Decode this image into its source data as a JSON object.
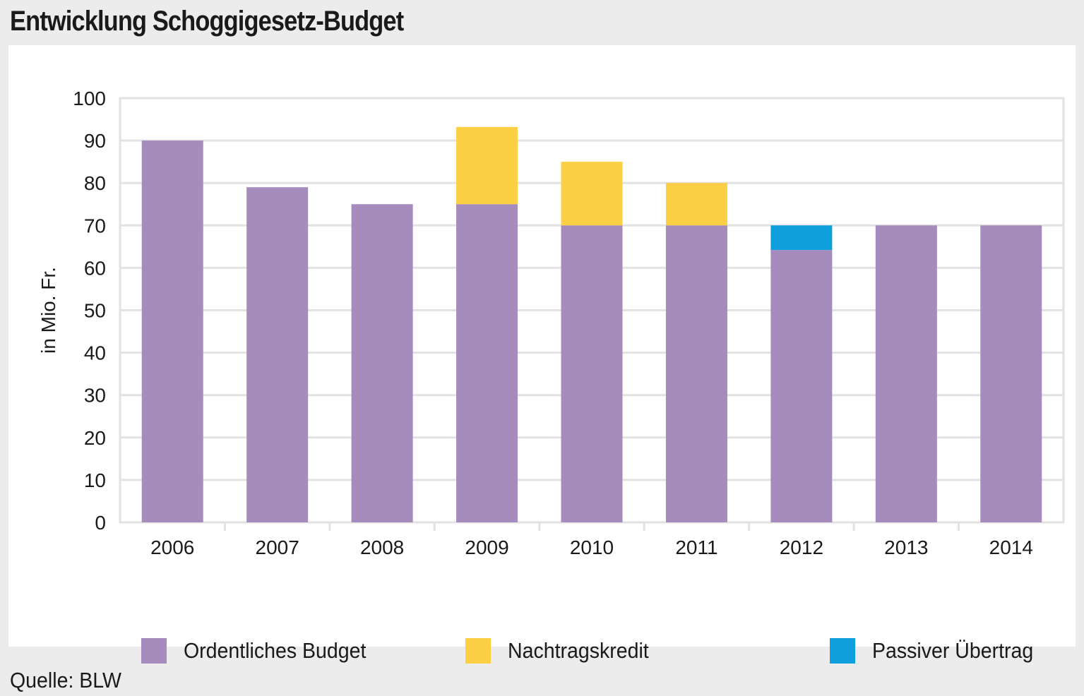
{
  "title": "Entwicklung Schoggigesetz-Budget",
  "source": "Quelle: BLW",
  "colors": {
    "ordentlich": "#a68bbd",
    "nachtrag": "#fccf44",
    "passiv": "#0e9fdc",
    "grid": "#e2e2e2",
    "background": "#ececec"
  },
  "chart_data": {
    "type": "bar",
    "stacked": true,
    "title": "Entwicklung Schoggigesetz-Budget",
    "xlabel": "",
    "ylabel": "in Mio. Fr.",
    "ylim": [
      0,
      100
    ],
    "yticks": [
      0,
      10,
      20,
      30,
      40,
      50,
      60,
      70,
      80,
      90,
      100
    ],
    "categories": [
      "2006",
      "2007",
      "2008",
      "2009",
      "2010",
      "2011",
      "2012",
      "2013",
      "2014"
    ],
    "series": [
      {
        "name": "Ordentliches Budget",
        "color": "#a68bbd",
        "values": [
          90,
          79,
          75,
          75,
          70,
          70,
          64.2,
          70,
          70
        ]
      },
      {
        "name": "Nachtragskredit",
        "color": "#fccf44",
        "values": [
          0,
          0,
          0,
          18.2,
          15,
          10,
          0,
          0,
          0
        ]
      },
      {
        "name": "Passiver Übertrag",
        "color": "#0e9fdc",
        "values": [
          0,
          0,
          0,
          0,
          0,
          0,
          5.8,
          0,
          0
        ]
      }
    ],
    "legend_position": "bottom",
    "grid": true
  }
}
